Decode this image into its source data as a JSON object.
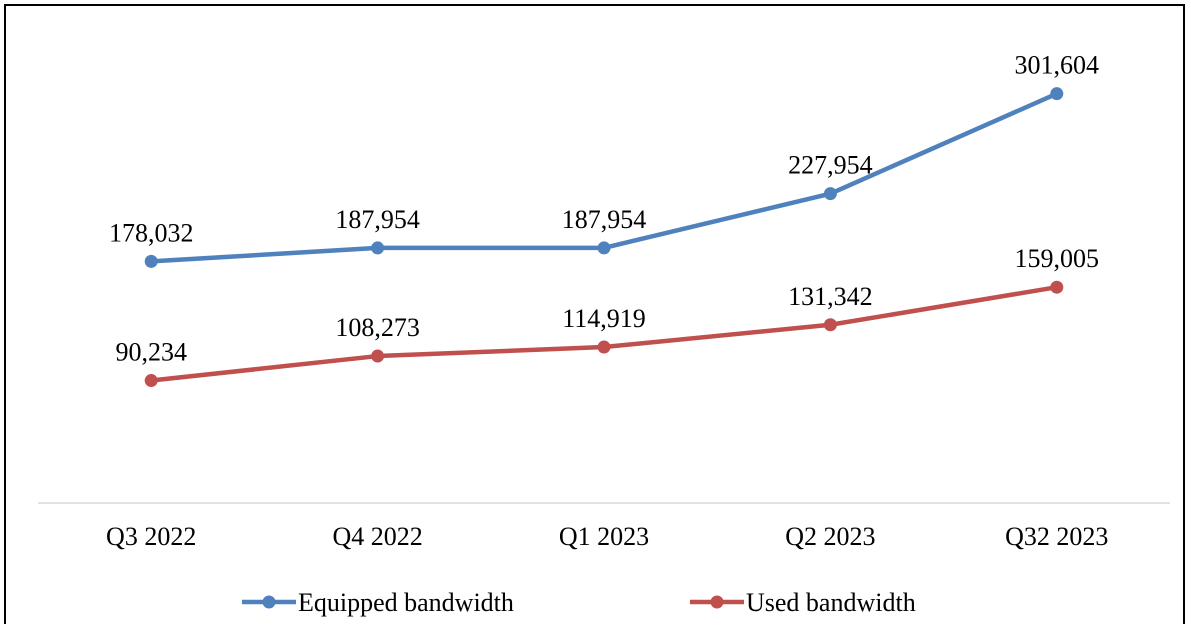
{
  "chart_data": {
    "type": "line",
    "categories": [
      "Q3 2022",
      "Q4 2022",
      "Q1 2023",
      "Q2 2023",
      "Q32 2023"
    ],
    "series": [
      {
        "name": "Equipped bandwidth",
        "values": [
          178032,
          187954,
          187954,
          227954,
          301604
        ],
        "labels": [
          "178,032",
          "187,954",
          "187,954",
          "227,954",
          "301,604"
        ],
        "color": "#4f81bd"
      },
      {
        "name": "Used bandwidth",
        "values": [
          90234,
          108273,
          114919,
          131342,
          159005
        ],
        "labels": [
          "90,234",
          "108,273",
          "114,919",
          "131,342",
          "159,005"
        ],
        "color": "#c0504d"
      }
    ],
    "title": "",
    "xlabel": "",
    "ylabel": "",
    "ylim": [
      0,
      350000
    ],
    "grid": false,
    "y_axis_visible": false,
    "legend_position": "bottom",
    "axis_color": "#d9d9d9"
  }
}
